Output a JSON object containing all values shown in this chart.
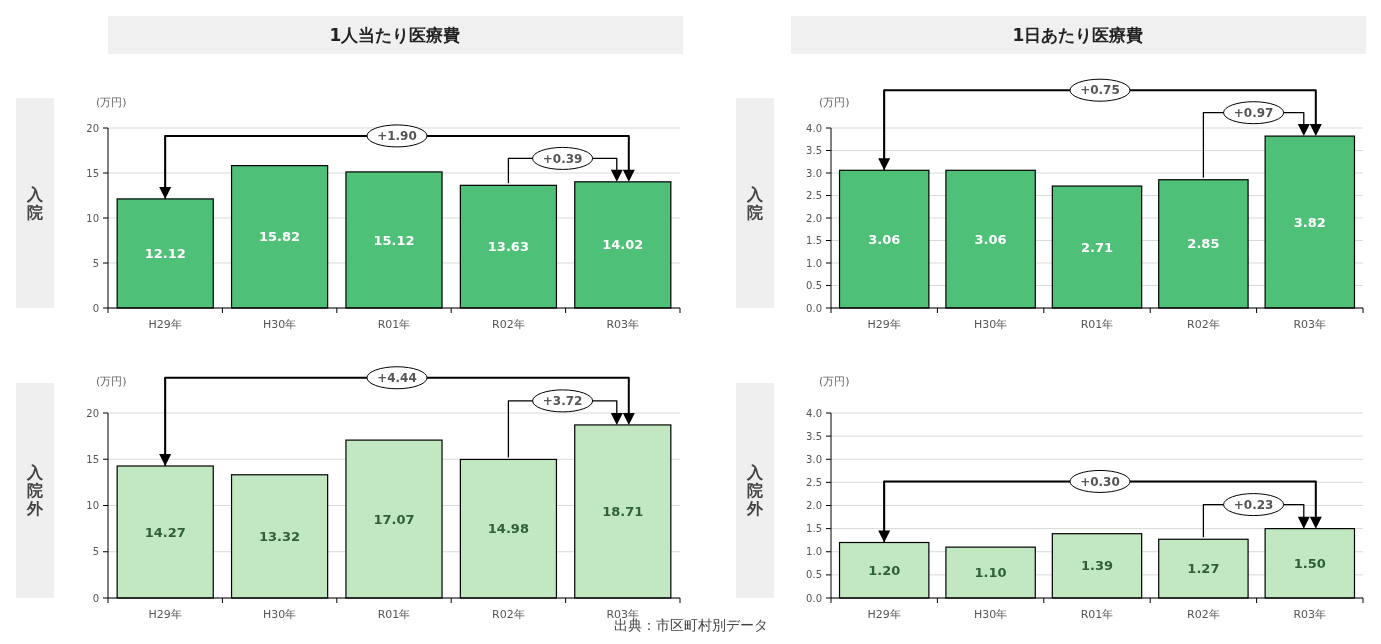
{
  "chart_data": [
    {
      "type": "bar",
      "title": "1人当たり医療費",
      "ylabel": "入院",
      "categories": [
        "H29年",
        "H30年",
        "R01年",
        "R02年",
        "R03年"
      ],
      "values": [
        12.12,
        15.82,
        15.12,
        13.63,
        14.02
      ],
      "color": "#4fc077",
      "ylim": [
        0,
        20
      ],
      "yticks": [
        0,
        5,
        10,
        15,
        20
      ],
      "grid": "y",
      "data_labels": true,
      "annotations": [
        "(万円)",
        "+1.90",
        "+0.39"
      ]
    },
    {
      "type": "bar",
      "title": "1日あたり医療費",
      "ylabel": "入院",
      "categories": [
        "H29年",
        "H30年",
        "R01年",
        "R02年",
        "R03年"
      ],
      "values": [
        3.06,
        3.06,
        2.71,
        2.85,
        3.82
      ],
      "color": "#4fc077",
      "ylim": [
        0,
        4
      ],
      "yticks": [
        {
          "value": 0,
          "label": "0.0"
        },
        {
          "value": 0.5,
          "label": "0.5"
        },
        {
          "value": 1,
          "label": "1.0"
        },
        {
          "value": 1.5,
          "label": "1.5"
        },
        {
          "value": 2,
          "label": "2.0"
        },
        {
          "value": 2.5,
          "label": "2.5"
        },
        {
          "value": 3,
          "label": "3.0"
        },
        {
          "value": 3.5,
          "label": "3.5"
        },
        {
          "value": 4,
          "label": "4.0"
        }
      ],
      "grid": "y",
      "data_labels": true,
      "annotations": [
        "(万円)",
        "+0.75",
        "+0.97"
      ]
    },
    {
      "type": "bar",
      "ylabel": "入院外",
      "categories": [
        "H29年",
        "H30年",
        "R01年",
        "R02年",
        "R03年"
      ],
      "values": [
        14.27,
        13.32,
        17.07,
        14.98,
        18.71
      ],
      "color": "#c2e8c2",
      "ylim": [
        0,
        20
      ],
      "yticks": [
        0,
        5,
        10,
        15,
        20
      ],
      "grid": "y",
      "data_labels": true,
      "annotations": [
        "(万円)",
        "+4.44",
        "+3.72",
        "出典：市区町村別データ"
      ]
    },
    {
      "type": "bar",
      "ylabel": "入院外",
      "categories": [
        "H29年",
        "H30年",
        "R01年",
        "R02年",
        "R03年"
      ],
      "values": [
        1.2,
        1.1,
        1.39,
        1.27,
        1.5
      ],
      "value_labels": [
        "1.20",
        "1.10",
        "1.39",
        "1.27",
        "1.50"
      ],
      "color": "#c2e8c2",
      "ylim": [
        0,
        4
      ],
      "yticks": [
        {
          "value": 0,
          "label": "0.0"
        },
        {
          "value": 0.5,
          "label": "0.5"
        },
        {
          "value": 1,
          "label": "1.0"
        },
        {
          "value": 1.5,
          "label": "1.5"
        },
        {
          "value": 2,
          "label": "2.0"
        },
        {
          "value": 2.5,
          "label": "2.5"
        },
        {
          "value": 3,
          "label": "3.0"
        },
        {
          "value": 3.5,
          "label": "3.5"
        },
        {
          "value": 4,
          "label": "4.0"
        }
      ],
      "grid": "y",
      "annotations": [
        "(万円)",
        "+0.30",
        "+0.23"
      ]
    }
  ]
}
